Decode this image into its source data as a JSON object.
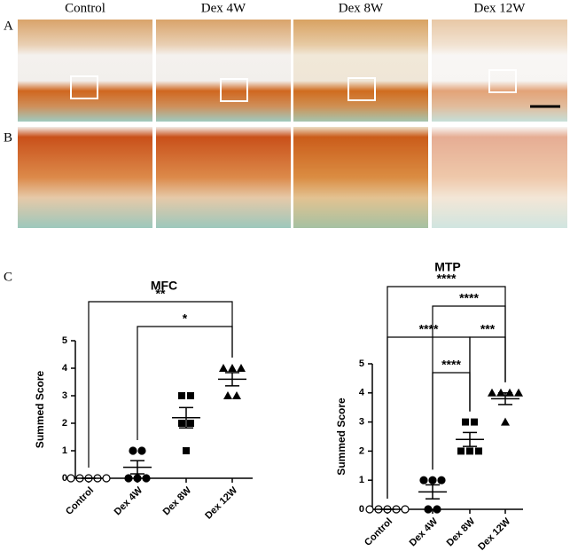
{
  "panel_labels": [
    "A",
    "B",
    "C"
  ],
  "column_labels": [
    "Control",
    "Dex 4W",
    "Dex 8W",
    "Dex 12W"
  ],
  "chart_data": [
    {
      "type": "scatter",
      "title": "MFC",
      "y_label": "Summed Score",
      "categories": [
        "Control",
        "Dex 4W",
        "Dex 8W",
        "Dex 12W"
      ],
      "markers": [
        "open-circle",
        "circle",
        "square",
        "triangle"
      ],
      "values": [
        [
          0,
          0,
          0,
          0,
          0
        ],
        [
          1,
          1,
          0,
          0,
          0
        ],
        [
          3,
          3,
          2,
          2,
          1
        ],
        [
          4,
          4,
          4,
          3,
          3
        ]
      ],
      "means": [
        0,
        0.4,
        2.2,
        3.6
      ],
      "sems": [
        0,
        0.24,
        0.37,
        0.24
      ],
      "ylim": [
        0,
        5
      ],
      "yticks": [
        0,
        1,
        2,
        3,
        4,
        5
      ],
      "annotations": [
        {
          "from": 0,
          "to": 3,
          "label": "**"
        },
        {
          "from": 1,
          "to": 3,
          "label": "*"
        }
      ]
    },
    {
      "type": "scatter",
      "title": "MTP",
      "y_label": "Summed Score",
      "categories": [
        "Control",
        "Dex 4W",
        "Dex 8W",
        "Dex 12W"
      ],
      "markers": [
        "open-circle",
        "circle",
        "square",
        "triangle"
      ],
      "values": [
        [
          0,
          0,
          0,
          0,
          0
        ],
        [
          1,
          1,
          1,
          0,
          0
        ],
        [
          3,
          3,
          2,
          2,
          2
        ],
        [
          4,
          4,
          4,
          4,
          3
        ]
      ],
      "means": [
        0,
        0.6,
        2.4,
        3.8
      ],
      "sems": [
        0,
        0.24,
        0.24,
        0.2
      ],
      "ylim": [
        0,
        5
      ],
      "yticks": [
        0,
        1,
        2,
        3,
        4,
        5
      ],
      "annotations": [
        {
          "from": 0,
          "to": 3,
          "label": "****"
        },
        {
          "from": 1,
          "to": 3,
          "label": "****"
        },
        {
          "from": 0,
          "to": 2,
          "label": "****"
        },
        {
          "from": 2,
          "to": 3,
          "label": "***"
        },
        {
          "from": 1,
          "to": 2,
          "label": "****"
        }
      ]
    }
  ]
}
